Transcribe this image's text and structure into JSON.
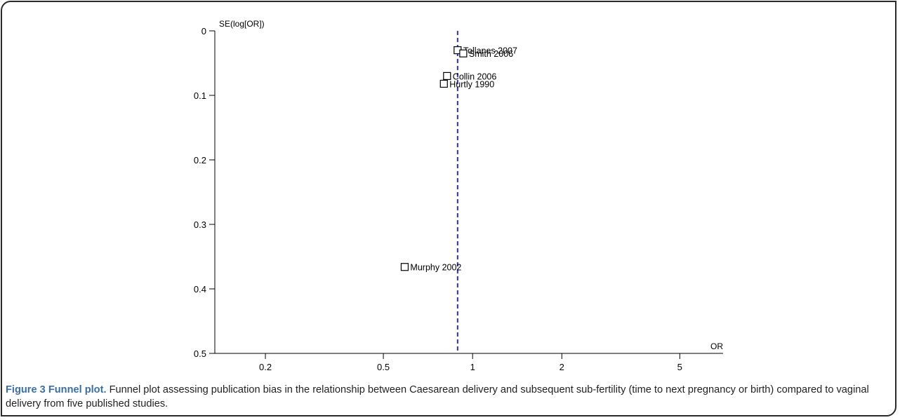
{
  "chart_data": {
    "type": "scatter",
    "title": "",
    "xlabel": "OR",
    "ylabel": "SE(log[OR])",
    "x_scale": "log",
    "xlim": [
      0.135,
      7.0
    ],
    "ylim": [
      0,
      0.5
    ],
    "y_inverted": true,
    "x_ticks": [
      0.2,
      0.5,
      1,
      2,
      5
    ],
    "x_tick_labels": [
      "0.2",
      "0.5",
      "1",
      "2",
      "5"
    ],
    "y_ticks": [
      0,
      0.1,
      0.2,
      0.3,
      0.4,
      0.5
    ],
    "y_tick_labels": [
      "0",
      "0.1",
      "0.2",
      "0.3",
      "0.4",
      "0.5"
    ],
    "grid": false,
    "pooled_estimate": {
      "or": 0.89,
      "style": "dashed",
      "color": "#2b2bd6"
    },
    "points": [
      {
        "label": "Tollanes 2007",
        "or": 0.89,
        "se": 0.03
      },
      {
        "label": "Smith 2006",
        "or": 0.93,
        "se": 0.035
      },
      {
        "label": "Collin 2006",
        "or": 0.82,
        "se": 0.07
      },
      {
        "label": "Hurtly 1990",
        "or": 0.8,
        "se": 0.082
      },
      {
        "label": "Murphy 2002",
        "or": 0.59,
        "se": 0.366
      }
    ]
  },
  "caption": {
    "figure_id": "Figure 3",
    "title": "Funnel plot.",
    "text": "Funnel plot assessing publication bias in the relationship between Caesarean delivery and subsequent sub-fertility (time to next pregnancy or birth) compared to vaginal delivery from five published studies."
  }
}
